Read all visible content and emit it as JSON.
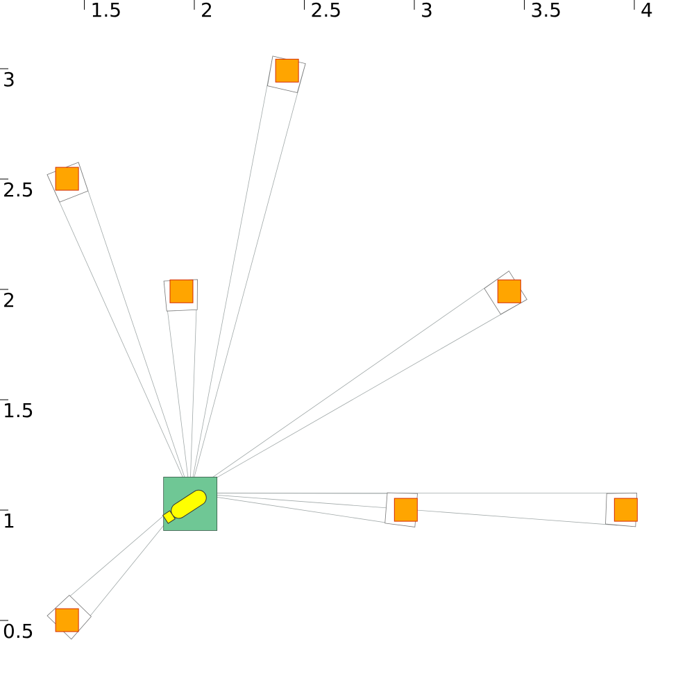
{
  "x_axis": {
    "ticks": [
      "1.5",
      "2",
      "2.5",
      "3",
      "3.5",
      "4"
    ]
  },
  "y_axis": {
    "ticks": [
      "3",
      "2.5",
      "2",
      "1.5",
      "1",
      "0.5"
    ]
  },
  "robot": {
    "x": 1.98,
    "y": 1.03,
    "heading_deg": 33,
    "base_color": "#6fc795",
    "body_color": "#ffff00",
    "icon": "robot-icon"
  },
  "targets": [
    {
      "x": 2.42,
      "y": 3.04,
      "heading_deg": 16
    },
    {
      "x": 1.42,
      "y": 2.55,
      "heading_deg": -18
    },
    {
      "x": 1.94,
      "y": 2.04,
      "heading_deg": -4
    },
    {
      "x": 3.43,
      "y": 2.04,
      "heading_deg": 58
    },
    {
      "x": 2.96,
      "y": 1.05,
      "heading_deg": 87
    },
    {
      "x": 3.96,
      "y": 1.05,
      "heading_deg": 88
    },
    {
      "x": 1.42,
      "y": 0.55,
      "heading_deg": -38
    }
  ],
  "colors": {
    "target_fill": "#ffa500",
    "target_stroke": "#d42a00",
    "frame_stroke": "#777777",
    "beam_stroke": "#a0a8a8",
    "axis_color": "#000000"
  }
}
